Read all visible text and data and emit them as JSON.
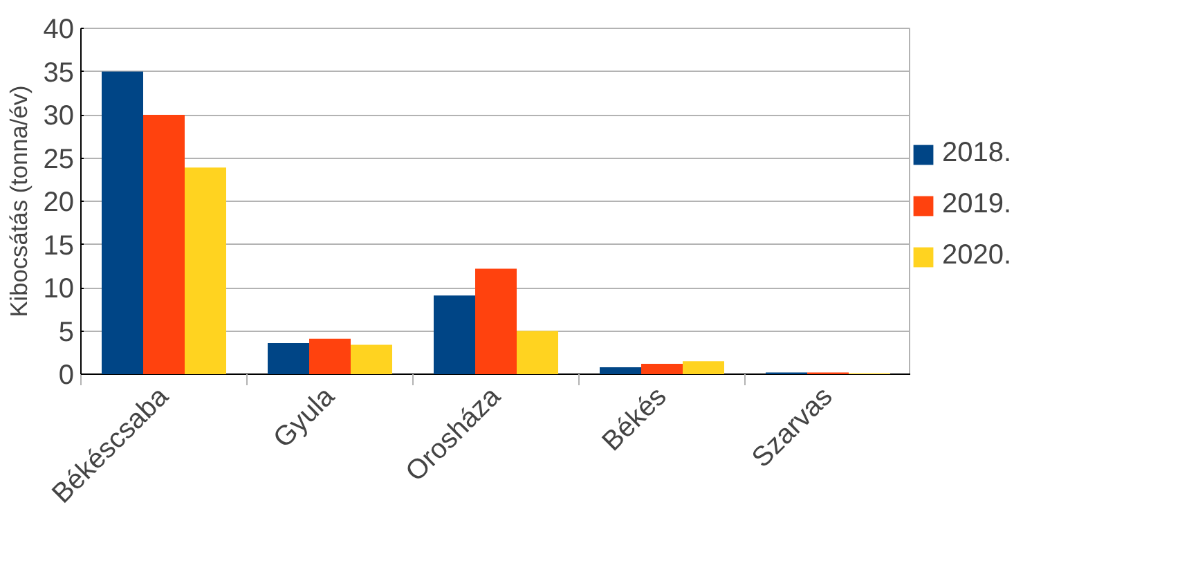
{
  "chart_data": {
    "type": "bar",
    "ylabel": "Kibocsátás (tonna/év)",
    "categories": [
      "Békéscsaba",
      "Gyula",
      "Orosháza",
      "Békés",
      "Szarvas"
    ],
    "series": [
      {
        "name": "2018.",
        "color": "#004586",
        "values": [
          35,
          3.6,
          9.1,
          0.8,
          0.2
        ]
      },
      {
        "name": "2019.",
        "color": "#ff420e",
        "values": [
          30,
          4.1,
          12.2,
          1.2,
          0.2
        ]
      },
      {
        "name": "2020.",
        "color": "#ffd320",
        "values": [
          23.9,
          3.4,
          5.0,
          1.5,
          0.1
        ]
      }
    ],
    "ylim": [
      0,
      40
    ],
    "yticks": [
      0,
      5,
      10,
      15,
      20,
      25,
      30,
      35,
      40
    ],
    "grid": "y",
    "legend": "right"
  }
}
